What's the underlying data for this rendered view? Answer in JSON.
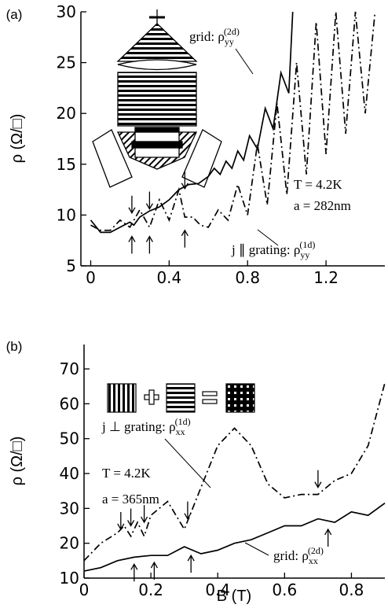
{
  "chart_data": [
    {
      "type": "line",
      "panel_label": "(a)",
      "ylabel": "ρ (Ω/□)",
      "xlim": [
        -0.05,
        1.5
      ],
      "ylim": [
        5,
        30
      ],
      "xticks": [
        0,
        0.4,
        0.8,
        1.2
      ],
      "yticks": [
        5,
        10,
        15,
        20,
        25,
        30
      ],
      "series": [
        {
          "name": "grid",
          "line_style": "solid",
          "color": "#000000",
          "x": [
            0,
            0.05,
            0.1,
            0.15,
            0.2,
            0.22,
            0.25,
            0.3,
            0.35,
            0.4,
            0.45,
            0.5,
            0.55,
            0.6,
            0.63,
            0.66,
            0.69,
            0.72,
            0.75,
            0.78,
            0.81,
            0.85,
            0.89,
            0.93,
            0.97,
            1.01,
            1.03
          ],
          "values": [
            9.5,
            8.3,
            8.3,
            8.8,
            9.3,
            9.0,
            9.8,
            10.4,
            10.8,
            11.5,
            12.5,
            13,
            13.1,
            13.8,
            14.6,
            14.0,
            15.3,
            14.6,
            16.3,
            15.4,
            17.8,
            16.5,
            20.5,
            18.5,
            24,
            22,
            30
          ]
        },
        {
          "name": "j || grating",
          "line_style": "dashdot",
          "color": "#000000",
          "x": [
            0,
            0.05,
            0.1,
            0.15,
            0.2,
            0.25,
            0.3,
            0.35,
            0.4,
            0.45,
            0.48,
            0.52,
            0.56,
            0.6,
            0.65,
            0.7,
            0.75,
            0.8,
            0.85,
            0.9,
            0.95,
            1.0,
            1.05,
            1.1,
            1.15,
            1.2,
            1.25,
            1.3,
            1.35,
            1.4,
            1.45
          ],
          "values": [
            9,
            8.5,
            8.5,
            9.5,
            8.8,
            10.5,
            8.8,
            11.5,
            9.5,
            12.5,
            9.8,
            9.8,
            9,
            8.8,
            10.5,
            9.5,
            13,
            10,
            17,
            11,
            21,
            12,
            25,
            14,
            29,
            16,
            30,
            18,
            30,
            20,
            30
          ]
        }
      ],
      "annotations": [
        {
          "text": "grid: ρ",
          "sub": "yy",
          "sup": "(2d)"
        },
        {
          "text": "T = 4.2K"
        },
        {
          "text": "a = 282nm"
        },
        {
          "text": "j ∥ grating:  ρ",
          "sub": "yy",
          "sup": "(1d)"
        }
      ],
      "arrows": [
        {
          "x": 0.21,
          "y": 10.2,
          "dir": "down"
        },
        {
          "x": 0.3,
          "y": 10.6,
          "dir": "down"
        },
        {
          "x": 0.48,
          "y": 12.6,
          "dir": "down"
        },
        {
          "x": 0.21,
          "y": 7.9,
          "dir": "up"
        },
        {
          "x": 0.3,
          "y": 7.9,
          "dir": "up"
        },
        {
          "x": 0.48,
          "y": 8.5,
          "dir": "up"
        }
      ]
    },
    {
      "type": "line",
      "panel_label": "(b)",
      "ylabel": "ρ (Ω/□)",
      "xlabel": "B (T)",
      "xlim": [
        0,
        0.9
      ],
      "ylim": [
        10,
        77
      ],
      "xticks": [
        0,
        0.2,
        0.4,
        0.6,
        0.8
      ],
      "yticks": [
        10,
        20,
        30,
        40,
        50,
        60,
        70
      ],
      "series": [
        {
          "name": "j ⊥ grating",
          "line_style": "dashdot",
          "color": "#000000",
          "x": [
            0,
            0.05,
            0.1,
            0.12,
            0.14,
            0.16,
            0.18,
            0.2,
            0.25,
            0.3,
            0.35,
            0.4,
            0.45,
            0.5,
            0.55,
            0.6,
            0.65,
            0.7,
            0.75,
            0.8,
            0.85,
            0.9
          ],
          "values": [
            15,
            20,
            23,
            25,
            22,
            26,
            22,
            28,
            32,
            24,
            36,
            48,
            53,
            48,
            37,
            33,
            34,
            34,
            38,
            40,
            48,
            66
          ]
        },
        {
          "name": "grid",
          "line_style": "solid",
          "color": "#000000",
          "x": [
            0,
            0.05,
            0.1,
            0.15,
            0.2,
            0.25,
            0.3,
            0.35,
            0.4,
            0.45,
            0.5,
            0.55,
            0.6,
            0.65,
            0.7,
            0.75,
            0.8,
            0.85,
            0.9
          ],
          "values": [
            12,
            13,
            15,
            16,
            16.5,
            16.5,
            19,
            17,
            18,
            20,
            21,
            23,
            25,
            25,
            27,
            26,
            29,
            28,
            31.5
          ]
        }
      ],
      "annotations": [
        {
          "text": "j ⊥ grating:  ρ",
          "sub": "xx",
          "sup": "(1d)"
        },
        {
          "text": "T = 4.2K"
        },
        {
          "text": "a = 365nm"
        },
        {
          "text": "grid:  ρ",
          "sub": "xx",
          "sup": "(2d)"
        }
      ],
      "arrows": [
        {
          "x": 0.11,
          "y": 24,
          "dir": "down"
        },
        {
          "x": 0.14,
          "y": 25,
          "dir": "down"
        },
        {
          "x": 0.18,
          "y": 26,
          "dir": "down"
        },
        {
          "x": 0.31,
          "y": 27,
          "dir": "down"
        },
        {
          "x": 0.7,
          "y": 36,
          "dir": "down"
        },
        {
          "x": 0.15,
          "y": 14,
          "dir": "up"
        },
        {
          "x": 0.21,
          "y": 14.5,
          "dir": "up"
        },
        {
          "x": 0.32,
          "y": 16.5,
          "dir": "up"
        },
        {
          "x": 0.73,
          "y": 24,
          "dir": "up"
        }
      ]
    }
  ]
}
